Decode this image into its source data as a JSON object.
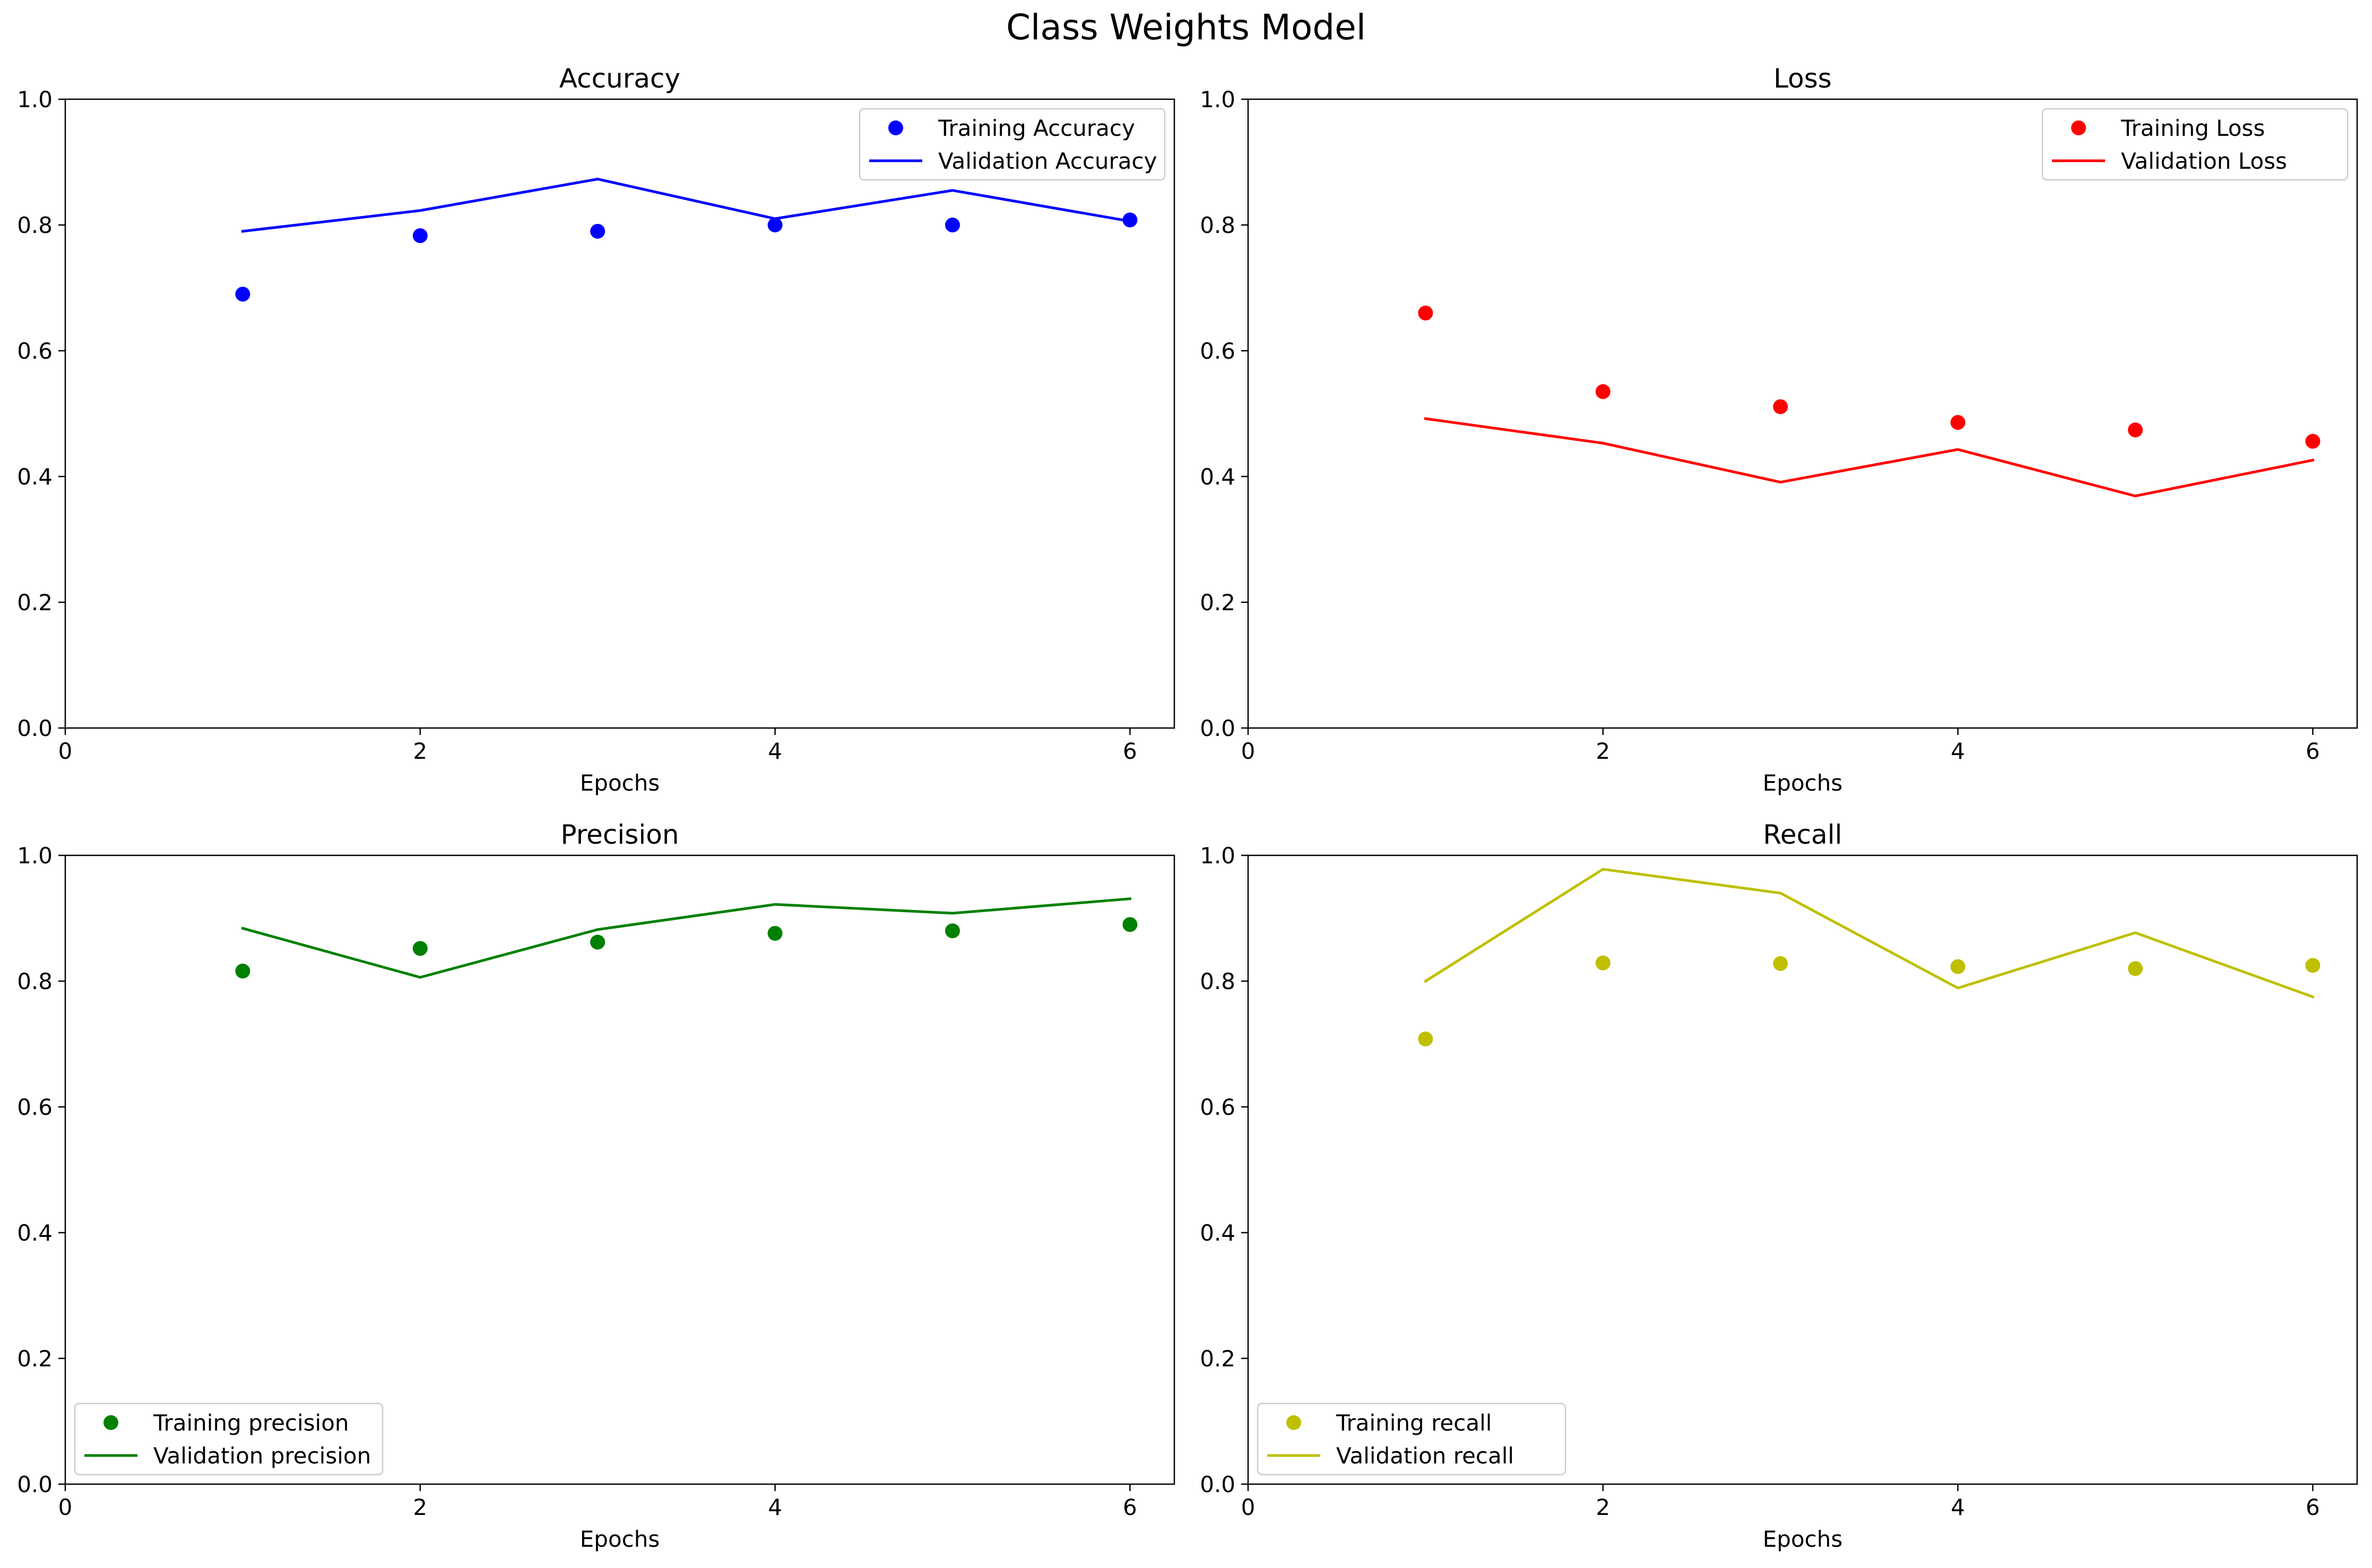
{
  "figure": {
    "title": "Class Weights Model"
  },
  "chart_data": [
    {
      "type": "line",
      "title": "Accuracy",
      "xlabel": "Epochs",
      "ylabel": "",
      "xlim": [
        0,
        6.25
      ],
      "ylim": [
        0,
        1.0
      ],
      "x_ticks": [
        "0",
        "2",
        "4",
        "6"
      ],
      "y_ticks": [
        "0.0",
        "0.2",
        "0.4",
        "0.6",
        "0.8",
        "1.0"
      ],
      "color": "#0000ff",
      "legend_position": "upper right",
      "x": [
        1,
        2,
        3,
        4,
        5,
        6
      ],
      "series": [
        {
          "name": "Training Accuracy",
          "style": "points",
          "values": [
            0.69,
            0.783,
            0.79,
            0.8,
            0.8,
            0.808
          ]
        },
        {
          "name": "Validation Accuracy",
          "style": "line",
          "values": [
            0.79,
            0.823,
            0.873,
            0.81,
            0.855,
            0.806
          ]
        }
      ]
    },
    {
      "type": "line",
      "title": "Loss",
      "xlabel": "Epochs",
      "ylabel": "",
      "xlim": [
        0,
        6.25
      ],
      "ylim": [
        0,
        1.0
      ],
      "x_ticks": [
        "0",
        "2",
        "4",
        "6"
      ],
      "y_ticks": [
        "0.0",
        "0.2",
        "0.4",
        "0.6",
        "0.8",
        "1.0"
      ],
      "color": "#ff0000",
      "legend_position": "upper right",
      "x": [
        1,
        2,
        3,
        4,
        5,
        6
      ],
      "series": [
        {
          "name": "Training Loss",
          "style": "points",
          "values": [
            0.66,
            0.535,
            0.511,
            0.486,
            0.474,
            0.456
          ]
        },
        {
          "name": "Validation Loss",
          "style": "line",
          "values": [
            0.492,
            0.453,
            0.391,
            0.443,
            0.369,
            0.426
          ]
        }
      ]
    },
    {
      "type": "line",
      "title": "Precision",
      "xlabel": "Epochs",
      "ylabel": "",
      "xlim": [
        0,
        6.25
      ],
      "ylim": [
        0,
        1.0
      ],
      "x_ticks": [
        "0",
        "2",
        "4",
        "6"
      ],
      "y_ticks": [
        "0.0",
        "0.2",
        "0.4",
        "0.6",
        "0.8",
        "1.0"
      ],
      "color": "#008000",
      "legend_position": "lower left",
      "x": [
        1,
        2,
        3,
        4,
        5,
        6
      ],
      "series": [
        {
          "name": "Training precision",
          "style": "points",
          "values": [
            0.816,
            0.852,
            0.862,
            0.876,
            0.88,
            0.89
          ]
        },
        {
          "name": "Validation precision",
          "style": "line",
          "values": [
            0.884,
            0.806,
            0.882,
            0.922,
            0.908,
            0.931
          ]
        }
      ]
    },
    {
      "type": "line",
      "title": "Recall",
      "xlabel": "Epochs",
      "ylabel": "",
      "xlim": [
        0,
        6.25
      ],
      "ylim": [
        0,
        1.0
      ],
      "x_ticks": [
        "0",
        "2",
        "4",
        "6"
      ],
      "y_ticks": [
        "0.0",
        "0.2",
        "0.4",
        "0.6",
        "0.8",
        "1.0"
      ],
      "color": "#bfbf00",
      "legend_position": "lower left",
      "x": [
        1,
        2,
        3,
        4,
        5,
        6
      ],
      "series": [
        {
          "name": "Training recall",
          "style": "points",
          "values": [
            0.708,
            0.829,
            0.828,
            0.823,
            0.82,
            0.825
          ]
        },
        {
          "name": "Validation recall",
          "style": "line",
          "values": [
            0.8,
            0.978,
            0.94,
            0.789,
            0.877,
            0.775
          ]
        }
      ]
    }
  ]
}
